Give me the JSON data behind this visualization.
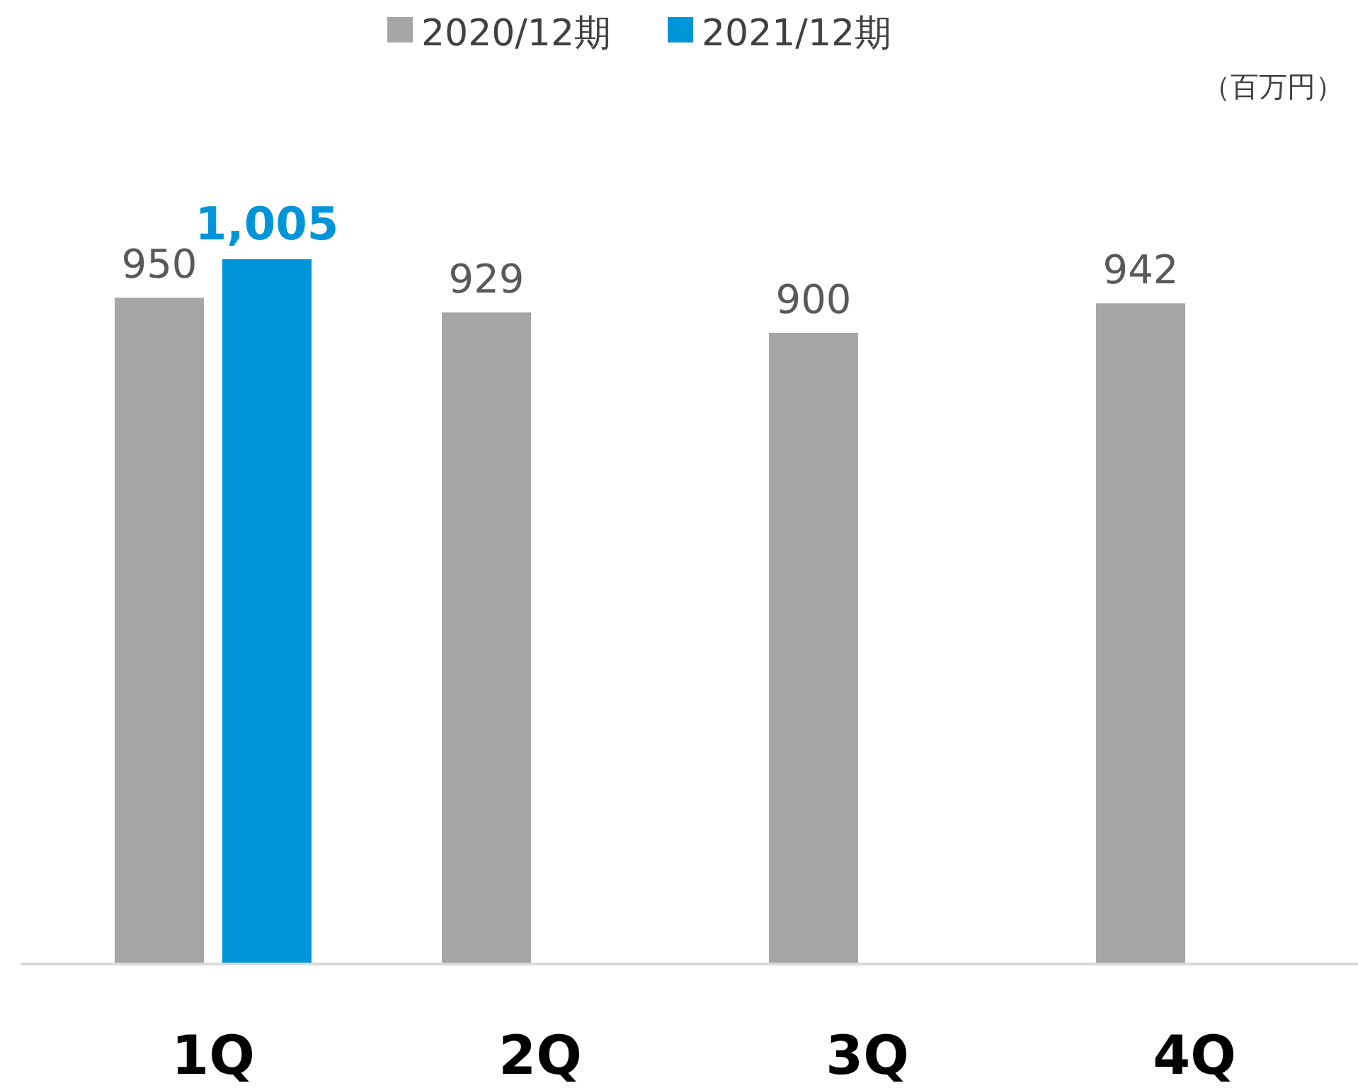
{
  "chart_data": {
    "type": "bar",
    "categories": [
      "1Q",
      "2Q",
      "3Q",
      "4Q"
    ],
    "series": [
      {
        "name": "2020/12期",
        "color": "#a6a6a6",
        "values": [
          950,
          929,
          900,
          942
        ],
        "value_labels": [
          "950",
          "929",
          "900",
          "942"
        ]
      },
      {
        "name": "2021/12期",
        "color": "#0095d9",
        "values": [
          1005,
          null,
          null,
          null
        ],
        "value_labels": [
          "1,005",
          null,
          null,
          null
        ]
      }
    ],
    "legend": "top",
    "annotations": [
      "（百万円）"
    ]
  }
}
